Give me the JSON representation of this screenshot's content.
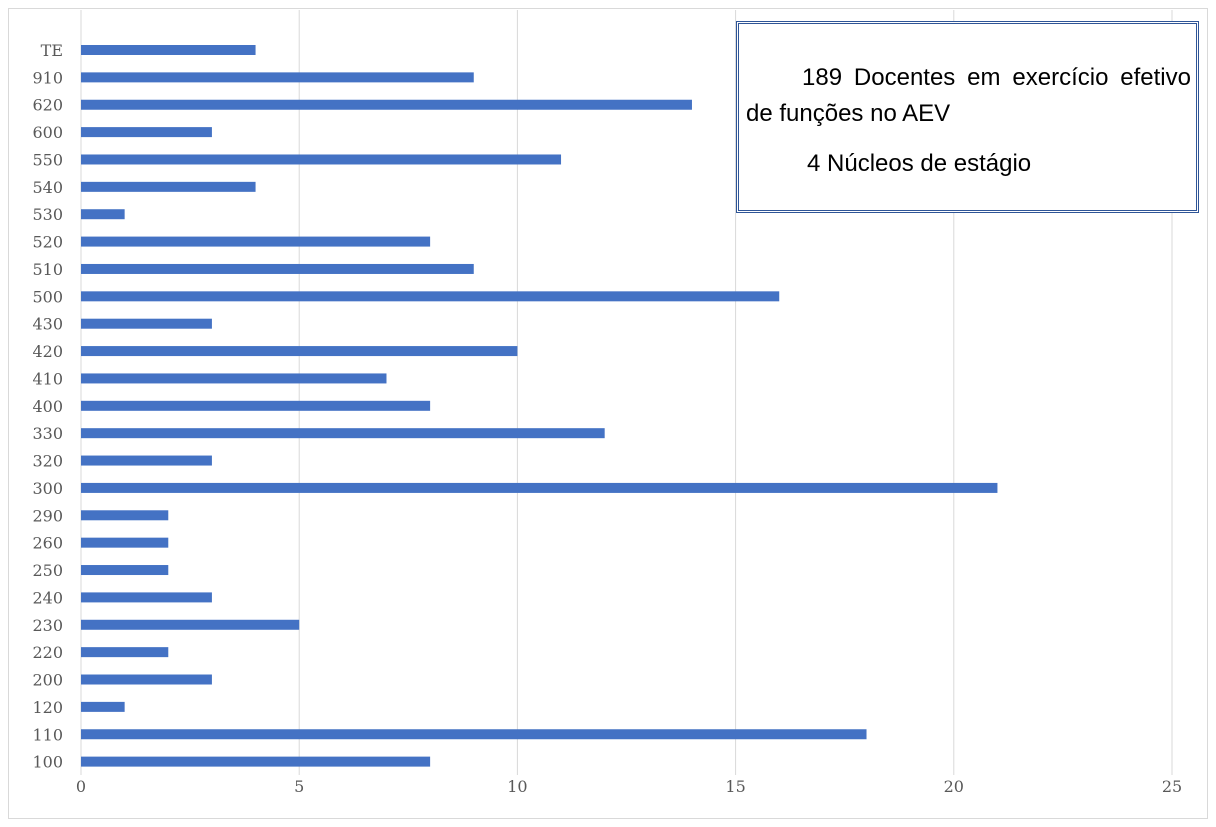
{
  "chart_data": {
    "type": "bar",
    "orientation": "horizontal",
    "categories": [
      "100",
      "110",
      "120",
      "200",
      "220",
      "230",
      "240",
      "250",
      "260",
      "290",
      "300",
      "320",
      "330",
      "400",
      "410",
      "420",
      "430",
      "500",
      "510",
      "520",
      "530",
      "540",
      "550",
      "600",
      "620",
      "910",
      "TE"
    ],
    "values": [
      8,
      18,
      1,
      3,
      2,
      5,
      3,
      2,
      2,
      2,
      21,
      3,
      12,
      8,
      7,
      10,
      3,
      16,
      9,
      8,
      1,
      4,
      11,
      3,
      14,
      9,
      4
    ],
    "xlim": [
      0,
      25
    ],
    "xticks": [
      "0",
      "5",
      "10",
      "15",
      "20",
      "25"
    ],
    "grid": "vertical",
    "colors": {
      "bar": "#4472c4",
      "grid": "#d9d9d9",
      "tick_text": "#595959",
      "box_border": "#2f5597"
    },
    "annotations": [
      "189 Docentes em exercício efetivo de funções no AEV",
      "4 Núcleos de estágio"
    ]
  }
}
